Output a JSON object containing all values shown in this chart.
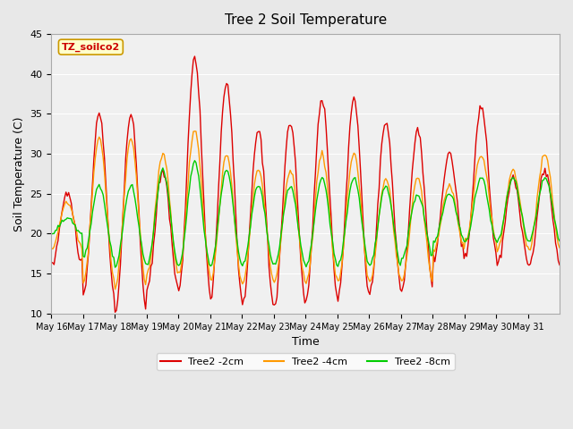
{
  "title": "Tree 2 Soil Temperature",
  "xlabel": "Time",
  "ylabel": "Soil Temperature (C)",
  "annotation": "TZ_soilco2",
  "ylim": [
    10,
    45
  ],
  "background_color": "#e8e8e8",
  "plot_bg_color": "#f0f0f0",
  "line_colors": {
    "2cm": "#dd0000",
    "4cm": "#ff9900",
    "8cm": "#00cc00"
  },
  "legend_labels": [
    "Tree2 -2cm",
    "Tree2 -4cm",
    "Tree2 -8cm"
  ],
  "x_tick_labels": [
    "May 16",
    "May 17",
    "May 18",
    "May 19",
    "May 20",
    "May 21",
    "May 22",
    "May 23",
    "May 24",
    "May 25",
    "May 26",
    "May 27",
    "May 28",
    "May 29",
    "May 30",
    "May 31"
  ],
  "num_days": 16,
  "ppd": 24,
  "daily_peaks_2cm": [
    25,
    35,
    35,
    28,
    42,
    39,
    33,
    34,
    37,
    37,
    34,
    33,
    30,
    36,
    27,
    28
  ],
  "daily_troughs_2cm": [
    16,
    12,
    10,
    13,
    13,
    12,
    11,
    11,
    12,
    12,
    13,
    13,
    17,
    17,
    16,
    16
  ],
  "daily_peaks_4cm": [
    24,
    32,
    32,
    30,
    33,
    30,
    28,
    28,
    30,
    30,
    27,
    27,
    26,
    30,
    28,
    30
  ],
  "daily_troughs_4cm": [
    18,
    14,
    13,
    15,
    15,
    14,
    14,
    14,
    14,
    14,
    14,
    14,
    18,
    19,
    18,
    18
  ],
  "daily_peaks_8cm": [
    22,
    26,
    26,
    28,
    29,
    28,
    26,
    26,
    27,
    27,
    26,
    25,
    25,
    27,
    27,
    27
  ],
  "daily_troughs_8cm": [
    20,
    17,
    16,
    16,
    16,
    16,
    16,
    16,
    16,
    16,
    16,
    17,
    19,
    19,
    19,
    19
  ]
}
